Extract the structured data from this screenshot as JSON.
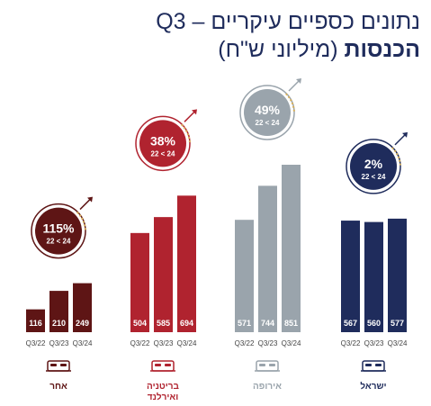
{
  "title": {
    "main": "נתונים כספיים עיקריים – Q3",
    "sub_bold": "הכנסות",
    "sub_light": "(מיליוני ש\"ח)"
  },
  "colors": {
    "title": "#1f2c5c",
    "other": "#5e1515",
    "uk": "#b0232f",
    "europe": "#9aa4ac",
    "israel": "#1f2c5c"
  },
  "icon": "bed-icon",
  "chart_data": {
    "type": "bar",
    "categories": [
      "Q3/22",
      "Q3/23",
      "Q3/24"
    ],
    "series": [
      {
        "name": "אחר",
        "key": "other",
        "values": [
          116,
          210,
          249
        ],
        "growth": "115%",
        "growth_label": "22 < 24"
      },
      {
        "name": "בריטניה\nואירלנד",
        "key": "uk",
        "values": [
          504,
          585,
          694
        ],
        "growth": "38%",
        "growth_label": "22 < 24"
      },
      {
        "name": "אירופה",
        "key": "europe",
        "values": [
          571,
          744,
          851
        ],
        "growth": "49%",
        "growth_label": "22 < 24"
      },
      {
        "name": "ישראל",
        "key": "israel",
        "values": [
          567,
          560,
          577
        ],
        "growth": "2%",
        "growth_label": "22 < 24"
      }
    ],
    "ylim": [
      0,
      851
    ]
  }
}
